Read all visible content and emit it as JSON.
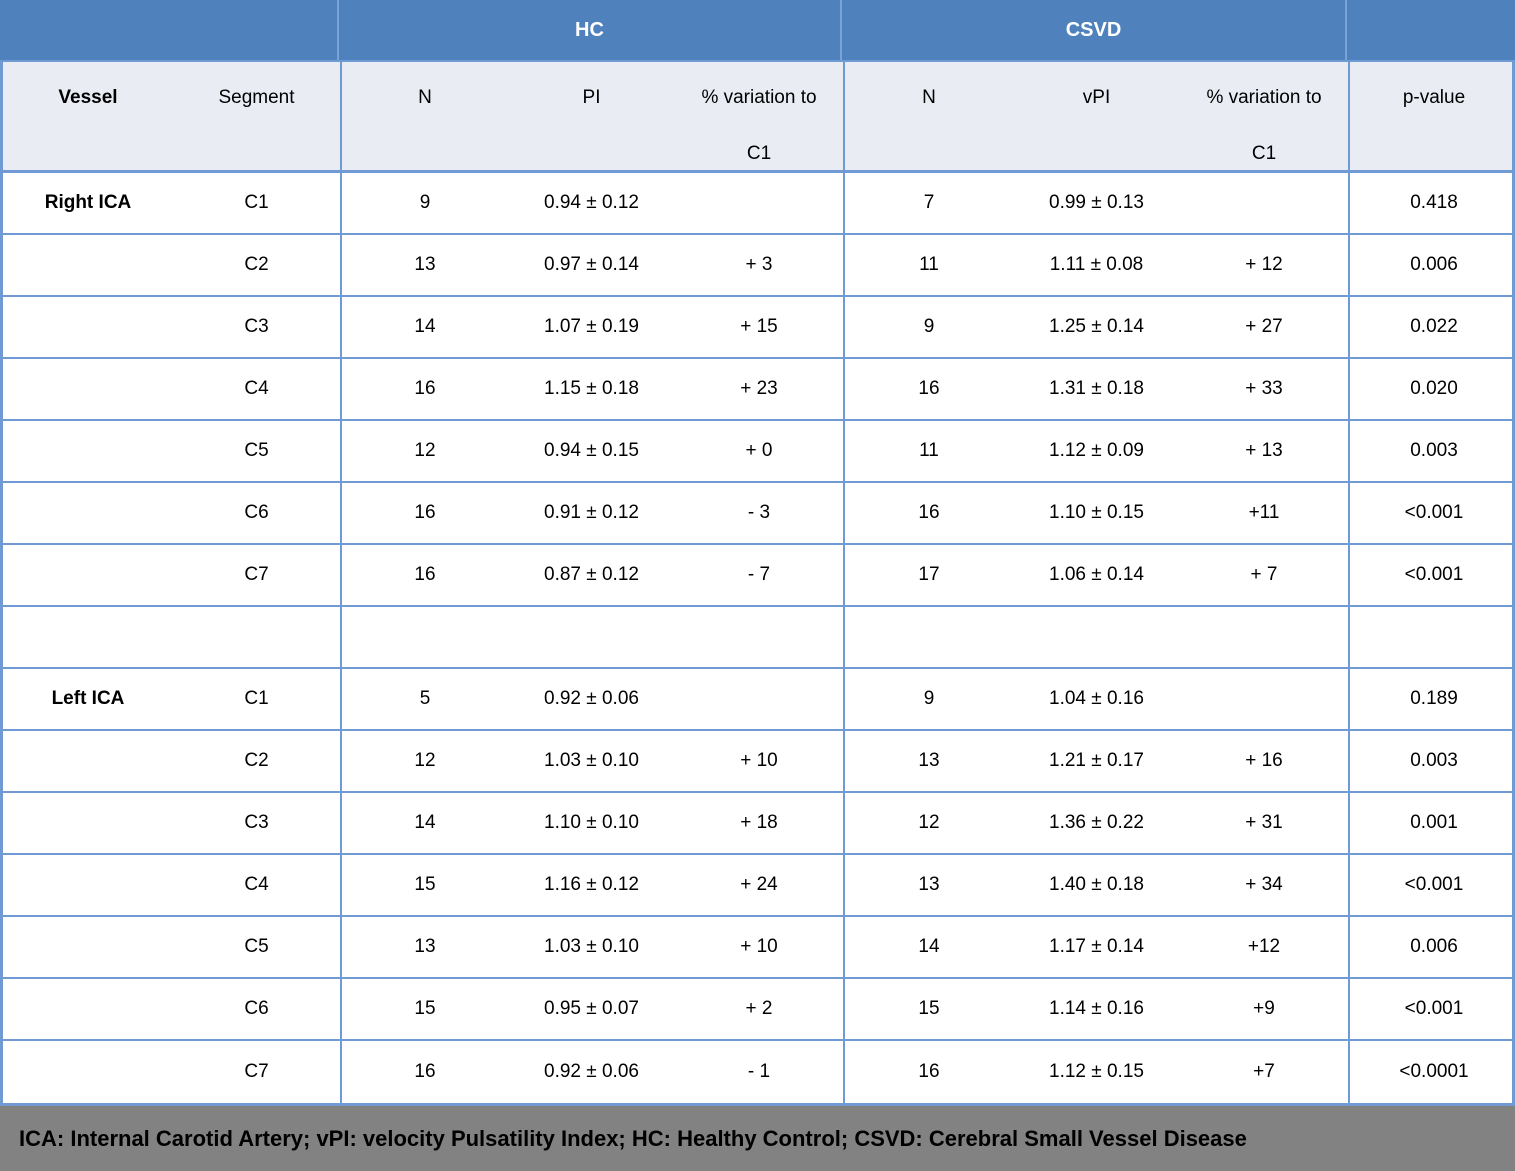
{
  "groups": {
    "hc": "HC",
    "csvd": "CSVD"
  },
  "columns": {
    "vessel": "Vessel",
    "segment": "Segment",
    "n": "N",
    "pi": "PI",
    "vpi": "vPI",
    "variation_line1": "% variation to",
    "variation_line2": "C1",
    "p_value": "p-value"
  },
  "rows": [
    {
      "vessel": "Right ICA",
      "segment": "C1",
      "hc_n": "9",
      "hc_pi": "0.94 ± 0.12",
      "hc_var": "",
      "csvd_n": "7",
      "csvd_pi": "0.99 ± 0.13",
      "csvd_var": "",
      "p": "0.418"
    },
    {
      "vessel": "",
      "segment": "C2",
      "hc_n": "13",
      "hc_pi": "0.97 ± 0.14",
      "hc_var": "+ 3",
      "csvd_n": "11",
      "csvd_pi": "1.11 ± 0.08",
      "csvd_var": "+ 12",
      "p": "0.006"
    },
    {
      "vessel": "",
      "segment": "C3",
      "hc_n": "14",
      "hc_pi": "1.07 ± 0.19",
      "hc_var": "+ 15",
      "csvd_n": "9",
      "csvd_pi": "1.25 ± 0.14",
      "csvd_var": "+ 27",
      "p": "0.022"
    },
    {
      "vessel": "",
      "segment": "C4",
      "hc_n": "16",
      "hc_pi": "1.15 ± 0.18",
      "hc_var": "+ 23",
      "csvd_n": "16",
      "csvd_pi": "1.31 ± 0.18",
      "csvd_var": "+ 33",
      "p": "0.020"
    },
    {
      "vessel": "",
      "segment": "C5",
      "hc_n": "12",
      "hc_pi": "0.94 ± 0.15",
      "hc_var": "+ 0",
      "csvd_n": "11",
      "csvd_pi": "1.12 ± 0.09",
      "csvd_var": "+ 13",
      "p": "0.003"
    },
    {
      "vessel": "",
      "segment": "C6",
      "hc_n": "16",
      "hc_pi": "0.91 ± 0.12",
      "hc_var": "- 3",
      "csvd_n": "16",
      "csvd_pi": "1.10 ± 0.15",
      "csvd_var": "+11",
      "p": "<0.001"
    },
    {
      "vessel": "",
      "segment": "C7",
      "hc_n": "16",
      "hc_pi": "0.87 ± 0.12",
      "hc_var": "- 7",
      "csvd_n": "17",
      "csvd_pi": "1.06 ± 0.14",
      "csvd_var": "+ 7",
      "p": "<0.001"
    },
    {
      "vessel": "",
      "segment": "",
      "hc_n": "",
      "hc_pi": "",
      "hc_var": "",
      "csvd_n": "",
      "csvd_pi": "",
      "csvd_var": "",
      "p": ""
    },
    {
      "vessel": "Left ICA",
      "segment": "C1",
      "hc_n": "5",
      "hc_pi": "0.92 ± 0.06",
      "hc_var": "",
      "csvd_n": "9",
      "csvd_pi": "1.04 ± 0.16",
      "csvd_var": "",
      "p": "0.189"
    },
    {
      "vessel": "",
      "segment": "C2",
      "hc_n": "12",
      "hc_pi": "1.03 ± 0.10",
      "hc_var": "+ 10",
      "csvd_n": "13",
      "csvd_pi": "1.21 ± 0.17",
      "csvd_var": "+ 16",
      "p": "0.003"
    },
    {
      "vessel": "",
      "segment": "C3",
      "hc_n": "14",
      "hc_pi": "1.10 ± 0.10",
      "hc_var": "+ 18",
      "csvd_n": "12",
      "csvd_pi": "1.36 ± 0.22",
      "csvd_var": "+ 31",
      "p": "0.001"
    },
    {
      "vessel": "",
      "segment": "C4",
      "hc_n": "15",
      "hc_pi": "1.16 ± 0.12",
      "hc_var": "+ 24",
      "csvd_n": "13",
      "csvd_pi": "1.40 ± 0.18",
      "csvd_var": "+ 34",
      "p": "<0.001"
    },
    {
      "vessel": "",
      "segment": "C5",
      "hc_n": "13",
      "hc_pi": "1.03 ± 0.10",
      "hc_var": "+ 10",
      "csvd_n": "14",
      "csvd_pi": "1.17 ± 0.14",
      "csvd_var": "+12",
      "p": "0.006"
    },
    {
      "vessel": "",
      "segment": "C6",
      "hc_n": "15",
      "hc_pi": "0.95 ± 0.07",
      "hc_var": "+ 2",
      "csvd_n": "15",
      "csvd_pi": "1.14 ± 0.16",
      "csvd_var": "+9",
      "p": "<0.001"
    },
    {
      "vessel": "",
      "segment": "C7",
      "hc_n": "16",
      "hc_pi": "0.92 ± 0.06",
      "hc_var": "- 1",
      "csvd_n": "16",
      "csvd_pi": "1.12 ± 0.15",
      "csvd_var": "+7",
      "p": "<0.0001"
    }
  ],
  "footnote": "ICA: Internal Carotid Artery; vPI: velocity Pulsatility Index; HC: Healthy Control; CSVD: Cerebral Small Vessel Disease",
  "colors": {
    "header_blue": "#4f81bd",
    "header_light_bg": "#e9edf3",
    "border_blue": "#6f9ad3",
    "band_separator": "#7aa3d6",
    "footnote_bg": "#828282"
  }
}
